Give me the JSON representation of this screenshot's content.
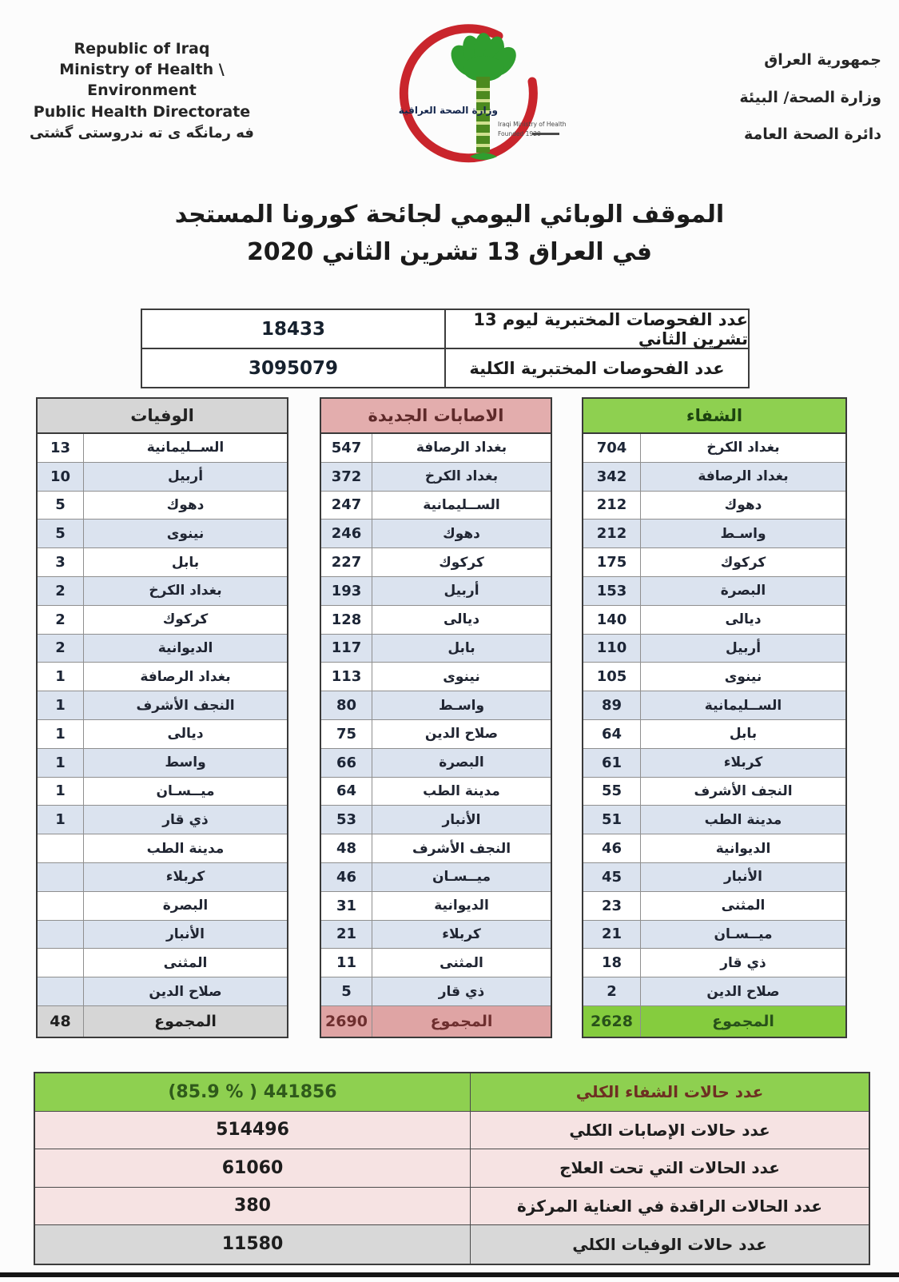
{
  "header": {
    "english_lines": [
      "Republic of Iraq",
      "Ministry of Health \\ Environment",
      "Public Health Directorate",
      "فه رمانگه ی ته ندروستی گشتی"
    ],
    "arabic_lines": [
      "جمهورية العراق",
      "وزارة الصحة/ البيئة",
      "دائرة الصحة العامة"
    ],
    "logo": {
      "caption_ar": "وزارة الصحة العراقية",
      "caption_en": "Iraqi Ministry of Health",
      "caption_founded": "Founded 1920"
    }
  },
  "title": {
    "line1": "الموقف الوبائي اليومي لجائحة كورونا المستجد",
    "line2": "في العراق  13  تشرين الثاني 2020"
  },
  "tests": {
    "rows": [
      {
        "label": "عدد الفحوصات المختبرية  ليوم 13 تشرين الثاني",
        "value": "18433"
      },
      {
        "label": "عدد الفحوصات المختبرية الكلية",
        "value": "3095079"
      }
    ]
  },
  "gov_tables": [
    {
      "id": "deaths",
      "title": "الوفيات",
      "theme_color": "#d6d6d6",
      "total_label": "المجموع",
      "total": "48",
      "rows": [
        {
          "name": "الســليمانية",
          "value": "13"
        },
        {
          "name": "أربيل",
          "value": "10"
        },
        {
          "name": "دهوك",
          "value": "5"
        },
        {
          "name": "نينوى",
          "value": "5"
        },
        {
          "name": "بابل",
          "value": "3"
        },
        {
          "name": "بغداد الكرخ",
          "value": "2"
        },
        {
          "name": "كركوك",
          "value": "2"
        },
        {
          "name": "الديوانية",
          "value": "2"
        },
        {
          "name": "بغداد الرصافة",
          "value": "1"
        },
        {
          "name": "النجف الأشرف",
          "value": "1"
        },
        {
          "name": "ديالى",
          "value": "1"
        },
        {
          "name": "واسط",
          "value": "1"
        },
        {
          "name": "ميــسـان",
          "value": "1"
        },
        {
          "name": "ذي قار",
          "value": "1"
        },
        {
          "name": "مدينة الطب",
          "value": ""
        },
        {
          "name": "كربلاء",
          "value": ""
        },
        {
          "name": "البصرة",
          "value": ""
        },
        {
          "name": "الأنبار",
          "value": ""
        },
        {
          "name": "المثنى",
          "value": ""
        },
        {
          "name": "صلاح الدين",
          "value": ""
        }
      ]
    },
    {
      "id": "new_cases",
      "title": "الاصابات الجديدة",
      "theme_color": "#e3adad",
      "total_label": "المجموع",
      "total": "2690",
      "rows": [
        {
          "name": "بغداد الرصافة",
          "value": "547"
        },
        {
          "name": "بغداد الكرخ",
          "value": "372"
        },
        {
          "name": "الســليمانية",
          "value": "247"
        },
        {
          "name": "دهوك",
          "value": "246"
        },
        {
          "name": "كركوك",
          "value": "227"
        },
        {
          "name": "أربيل",
          "value": "193"
        },
        {
          "name": "ديالى",
          "value": "128"
        },
        {
          "name": "بابل",
          "value": "117"
        },
        {
          "name": "نينوى",
          "value": "113"
        },
        {
          "name": "واسـط",
          "value": "80"
        },
        {
          "name": "صلاح الدين",
          "value": "75"
        },
        {
          "name": "البصرة",
          "value": "66"
        },
        {
          "name": "مدينة الطب",
          "value": "64"
        },
        {
          "name": "الأنبار",
          "value": "53"
        },
        {
          "name": "النجف الأشرف",
          "value": "48"
        },
        {
          "name": "ميــسـان",
          "value": "46"
        },
        {
          "name": "الديوانية",
          "value": "31"
        },
        {
          "name": "كربلاء",
          "value": "21"
        },
        {
          "name": "المثنى",
          "value": "11"
        },
        {
          "name": "ذي قار",
          "value": "5"
        }
      ]
    },
    {
      "id": "recoveries",
      "title": "الشفاء",
      "theme_color": "#8ed050",
      "total_label": "المجموع",
      "total": "2628",
      "rows": [
        {
          "name": "بغداد الكرخ",
          "value": "704"
        },
        {
          "name": "بغداد الرصافة",
          "value": "342"
        },
        {
          "name": "دهوك",
          "value": "212"
        },
        {
          "name": "واسـط",
          "value": "212"
        },
        {
          "name": "كركوك",
          "value": "175"
        },
        {
          "name": "البصرة",
          "value": "153"
        },
        {
          "name": "ديالى",
          "value": "140"
        },
        {
          "name": "أربيل",
          "value": "110"
        },
        {
          "name": "نينوى",
          "value": "105"
        },
        {
          "name": "الســليمانية",
          "value": "89"
        },
        {
          "name": "بابل",
          "value": "64"
        },
        {
          "name": "كربلاء",
          "value": "61"
        },
        {
          "name": "النجف الأشرف",
          "value": "55"
        },
        {
          "name": "مدينة الطب",
          "value": "51"
        },
        {
          "name": "الديوانية",
          "value": "46"
        },
        {
          "name": "الأنبار",
          "value": "45"
        },
        {
          "name": "المثنى",
          "value": "23"
        },
        {
          "name": "ميــسـان",
          "value": "21"
        },
        {
          "name": "ذي قار",
          "value": "18"
        },
        {
          "name": "صلاح الدين",
          "value": "2"
        }
      ]
    }
  ],
  "summary": {
    "rows": [
      {
        "label": "عدد حالات الشفاء الكلي",
        "value": "(85.9 % )   441856",
        "style": "green"
      },
      {
        "label": "عدد حالات الإصابات الكلي",
        "value": "514496",
        "style": "pink"
      },
      {
        "label": "عدد الحالات التي تحت العلاج",
        "value": "61060",
        "style": "pink"
      },
      {
        "label": "عدد الحالات الراقدة في العناية المركزة",
        "value": "380",
        "style": "pink"
      },
      {
        "label": "عدد حالات الوفيات الكلي",
        "value": "11580",
        "style": "gray"
      }
    ]
  }
}
